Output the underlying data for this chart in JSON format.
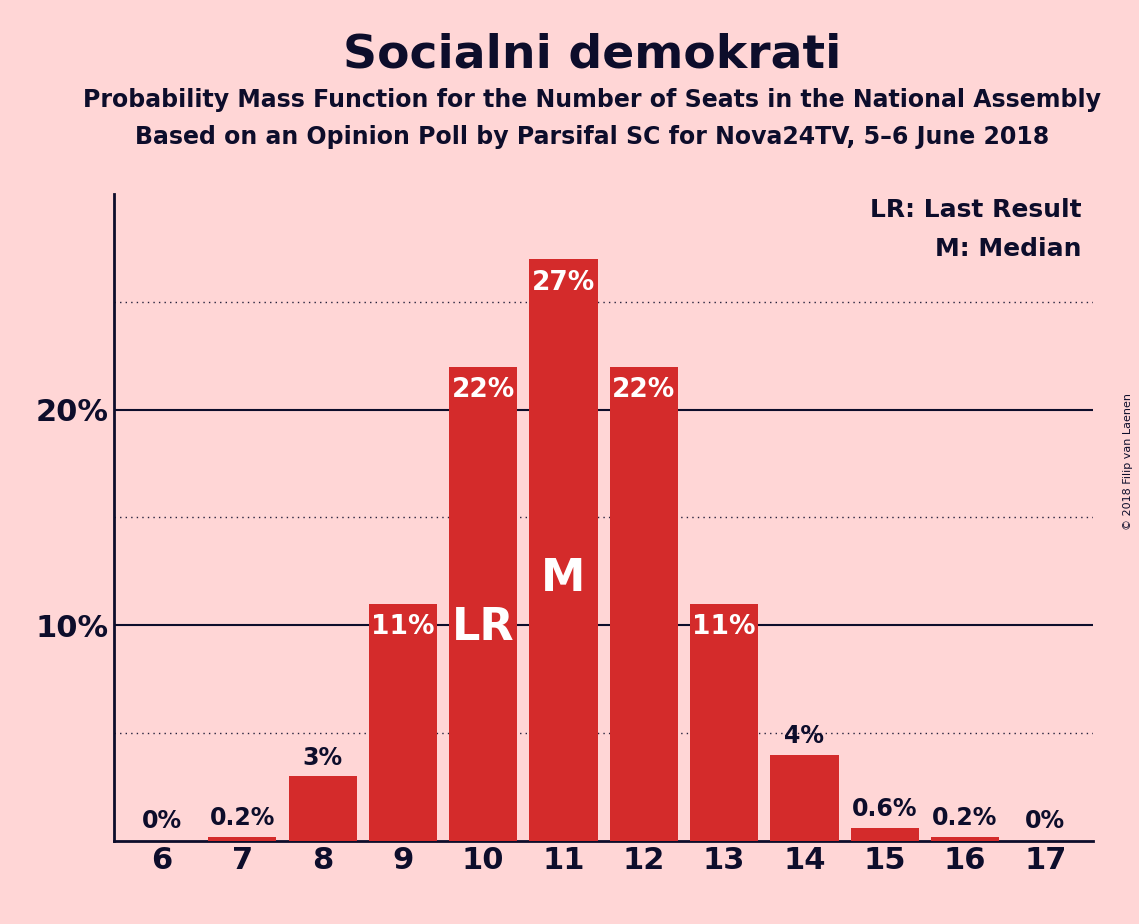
{
  "title": "Socialni demokrati",
  "subtitle1": "Probability Mass Function for the Number of Seats in the National Assembly",
  "subtitle2": "Based on an Opinion Poll by Parsifal SC for Nova24TV, 5–6 June 2018",
  "copyright": "© 2018 Filip van Laenen",
  "categories": [
    6,
    7,
    8,
    9,
    10,
    11,
    12,
    13,
    14,
    15,
    16,
    17
  ],
  "values": [
    0.0,
    0.2,
    3.0,
    11.0,
    22.0,
    27.0,
    22.0,
    11.0,
    4.0,
    0.6,
    0.2,
    0.0
  ],
  "bar_color": "#D42B2B",
  "background_color": "#FFD6D6",
  "text_color": "#0D0D2B",
  "bar_labels": [
    "0%",
    "0.2%",
    "3%",
    "11%",
    "22%",
    "27%",
    "22%",
    "11%",
    "4%",
    "0.6%",
    "0.2%",
    "0%"
  ],
  "yticks": [
    10,
    20
  ],
  "ytick_labels": [
    "10%",
    "20%"
  ],
  "dotted_lines": [
    5,
    15,
    25
  ],
  "solid_lines": [
    10,
    20
  ],
  "ylim": [
    0,
    30
  ],
  "lr_seat": 10,
  "median_seat": 11,
  "legend_text_lr": "LR: Last Result",
  "legend_text_m": "M: Median",
  "bar_label_inside_threshold": 5.0,
  "inside_label_color": "#FFFFFF",
  "outside_label_color": "#0D0D2B",
  "title_fontsize": 34,
  "subtitle_fontsize": 17,
  "ytick_fontsize": 22,
  "xtick_fontsize": 22,
  "bar_label_inside_fontsize": 19,
  "bar_label_outside_fontsize": 17,
  "lr_m_fontsize": 32,
  "legend_fontsize": 18
}
